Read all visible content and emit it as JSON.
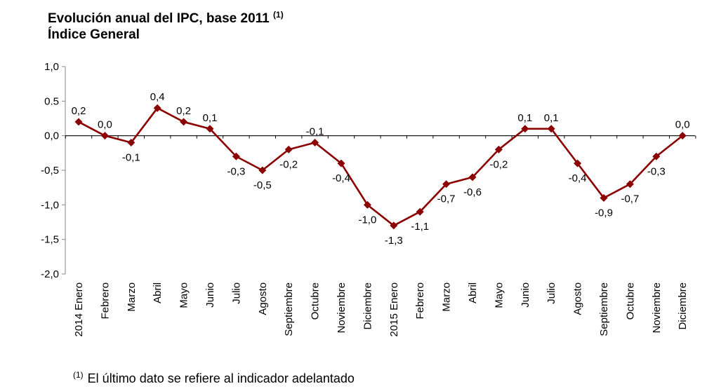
{
  "chart_data": {
    "type": "line",
    "title_line1": "Evolución anual del IPC, base 2011",
    "title_marker": "(1)",
    "title_line2": "Índice General",
    "categories": [
      "2014 Enero",
      "Febrero",
      "Marzo",
      "Abril",
      "Mayo",
      "Junio",
      "Julio",
      "Agosto",
      "Septiembre",
      "Octubre",
      "Noviembre",
      "Diciembre",
      "2015 Enero",
      "Febrero",
      "Marzo",
      "Abril",
      "Mayo",
      "Junio",
      "Julio",
      "Agosto",
      "Septiembre",
      "Octubre",
      "Noviembre",
      "Diciembre"
    ],
    "values": [
      0.2,
      0.0,
      -0.1,
      0.4,
      0.2,
      0.1,
      -0.3,
      -0.5,
      -0.2,
      -0.1,
      -0.4,
      -1.0,
      -1.3,
      -1.1,
      -0.7,
      -0.6,
      -0.2,
      0.1,
      0.1,
      -0.4,
      -0.9,
      -0.7,
      -0.3,
      0.0
    ],
    "data_labels": [
      "0,2",
      "0,0",
      "-0,1",
      "0,4",
      "0,2",
      "0,1",
      "-0,3",
      "-0,5",
      "-0,2",
      "-0,1",
      "-0,4",
      "-1,0",
      "-1,3",
      "-1,1",
      "-0,7",
      "-0,6",
      "-0,2",
      "0,1",
      "0,1",
      "-0,4",
      "-0,9",
      "-0,7",
      "-0,3",
      "0,0"
    ],
    "label_position": [
      "above",
      "above",
      "below",
      "above",
      "above",
      "above",
      "below",
      "below",
      "below",
      "above",
      "below",
      "below",
      "below",
      "below",
      "below",
      "below",
      "below",
      "above",
      "above",
      "below",
      "below",
      "below",
      "below",
      "above"
    ],
    "yticks": [
      1.0,
      0.5,
      0.0,
      -0.5,
      -1.0,
      -1.5,
      -2.0
    ],
    "ytick_labels": [
      "1,0",
      "0.5",
      "0,0",
      "-0,5",
      "-1,0",
      "-1,5",
      "-2,0"
    ],
    "ylim": [
      -2.0,
      1.0
    ],
    "grid": false,
    "line_color": "#8b0000",
    "footnote_marker": "(1)",
    "footnote_text": "El último dato se refiere al indicador adelantado"
  }
}
